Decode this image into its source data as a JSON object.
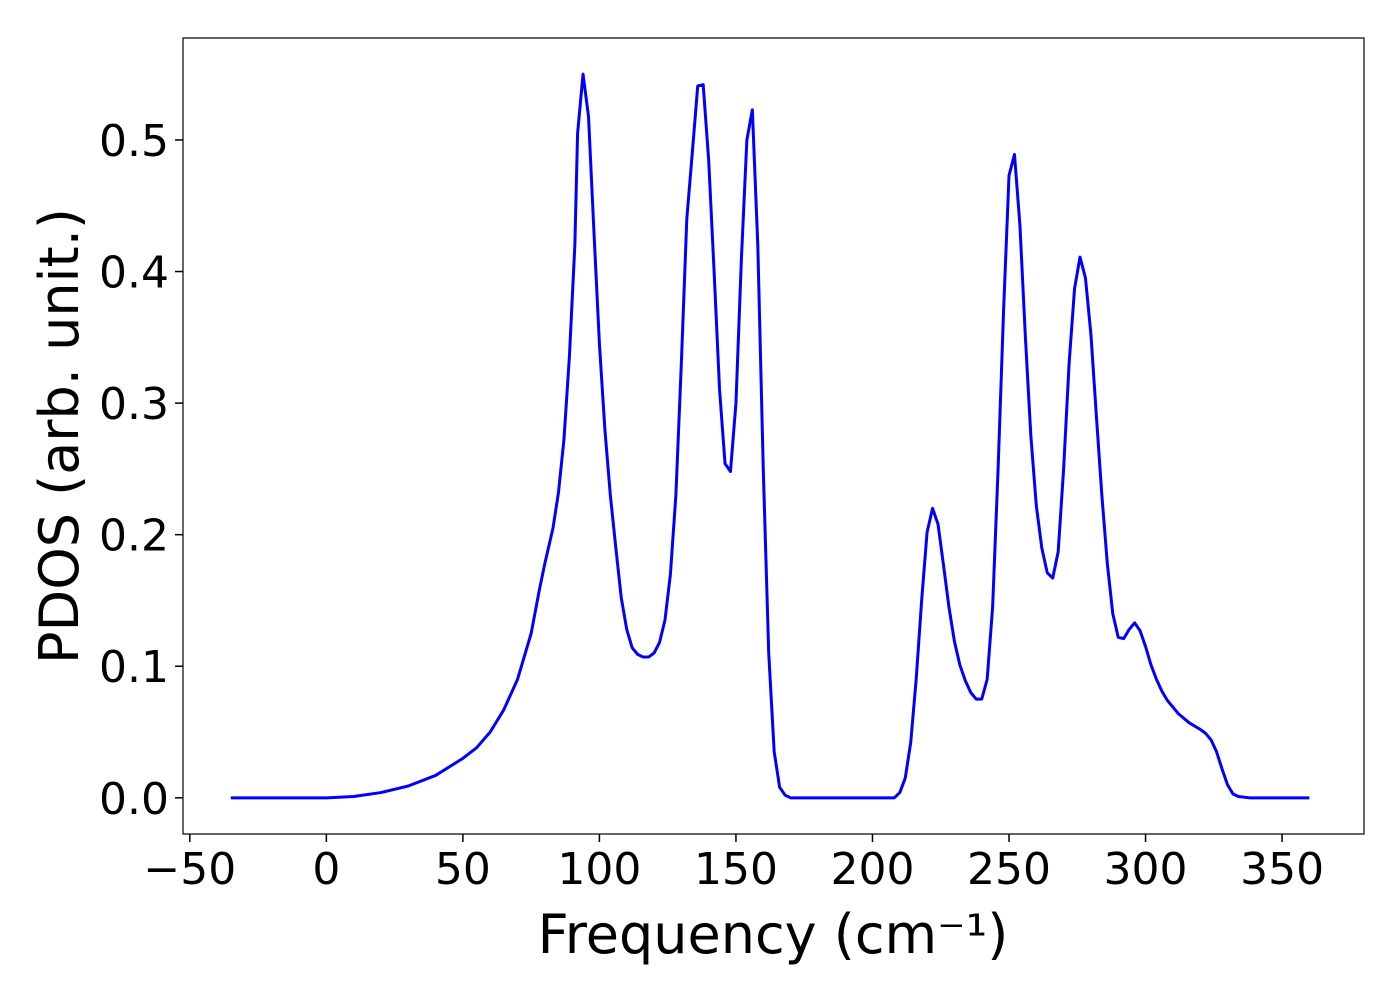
{
  "chart_data": {
    "type": "line",
    "x_label": "Frequency (cm⁻¹)",
    "y_label": "PDOS (arb. unit.)",
    "color": "#0000ff",
    "x": [
      -35,
      0,
      10,
      20,
      30,
      40,
      50,
      55,
      60,
      65,
      70,
      75,
      78,
      80,
      83,
      85,
      87,
      89,
      91,
      92,
      94,
      96,
      98,
      100,
      102,
      104,
      106,
      108,
      110,
      112,
      114,
      116,
      118,
      120,
      122,
      124,
      126,
      128,
      130,
      132,
      134,
      136,
      138,
      140,
      142,
      144,
      146,
      148,
      150,
      152,
      154,
      156,
      158,
      160,
      162,
      164,
      166,
      168,
      170,
      208,
      210,
      212,
      214,
      216,
      218,
      220,
      222,
      224,
      226,
      228,
      230,
      232,
      234,
      236,
      238,
      240,
      242,
      244,
      246,
      248,
      250,
      252,
      254,
      256,
      258,
      260,
      262,
      264,
      266,
      268,
      270,
      272,
      274,
      276,
      278,
      280,
      282,
      284,
      286,
      288,
      290,
      292,
      294,
      296,
      298,
      300,
      302,
      304,
      306,
      308,
      312,
      316,
      320,
      322,
      324,
      326,
      328,
      330,
      332,
      334,
      338,
      360
    ],
    "values": [
      0,
      0,
      0.001,
      0.004,
      0.009,
      0.017,
      0.03,
      0.038,
      0.05,
      0.067,
      0.09,
      0.125,
      0.158,
      0.178,
      0.205,
      0.232,
      0.272,
      0.335,
      0.42,
      0.505,
      0.55,
      0.518,
      0.43,
      0.345,
      0.28,
      0.23,
      0.19,
      0.152,
      0.128,
      0.114,
      0.109,
      0.107,
      0.107,
      0.11,
      0.118,
      0.135,
      0.17,
      0.23,
      0.33,
      0.44,
      0.49,
      0.541,
      0.542,
      0.485,
      0.4,
      0.31,
      0.254,
      0.248,
      0.3,
      0.41,
      0.5,
      0.523,
      0.42,
      0.25,
      0.11,
      0.035,
      0.008,
      0.002,
      0,
      0,
      0.004,
      0.015,
      0.042,
      0.09,
      0.15,
      0.202,
      0.22,
      0.208,
      0.177,
      0.145,
      0.119,
      0.101,
      0.089,
      0.08,
      0.075,
      0.075,
      0.09,
      0.145,
      0.25,
      0.37,
      0.473,
      0.489,
      0.435,
      0.35,
      0.275,
      0.222,
      0.19,
      0.171,
      0.167,
      0.187,
      0.25,
      0.33,
      0.387,
      0.411,
      0.395,
      0.352,
      0.29,
      0.23,
      0.178,
      0.14,
      0.122,
      0.121,
      0.128,
      0.133,
      0.127,
      0.115,
      0.101,
      0.09,
      0.081,
      0.074,
      0.064,
      0.057,
      0.052,
      0.049,
      0.044,
      0.035,
      0.022,
      0.01,
      0.003,
      0.001,
      0,
      0
    ],
    "xlim": [
      -52.5,
      380
    ],
    "ylim": [
      -0.0275,
      0.5775
    ],
    "xticks": [
      {
        "value": -50,
        "label": "−50"
      },
      0,
      50,
      100,
      150,
      200,
      250,
      300,
      350
    ],
    "yticks": [
      {
        "value": 0,
        "label": "0.0"
      },
      0.1,
      0.2,
      0.3,
      0.4,
      0.5
    ],
    "grid": false
  }
}
